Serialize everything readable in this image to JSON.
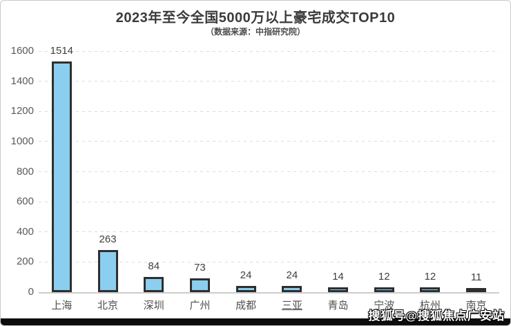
{
  "page": {
    "watermark": "搜狐号@搜狐焦点广安站"
  },
  "chart_data": {
    "type": "bar",
    "title": "2023年至今全国5000万以上豪宅成交TOP10",
    "subtitle": "（数据来源：中指研究院）",
    "categories": [
      "上海",
      "北京",
      "深圳",
      "广州",
      "成都",
      "三亚",
      "青岛",
      "宁波",
      "杭州",
      "南京"
    ],
    "values": [
      1514,
      263,
      84,
      73,
      24,
      24,
      14,
      12,
      12,
      11
    ],
    "underlined_category": "三亚",
    "xlabel": "",
    "ylabel": "",
    "ylim": [
      0,
      1600
    ],
    "yticks": [
      0,
      200,
      400,
      600,
      800,
      1000,
      1200,
      1400,
      1600
    ],
    "grid": "horizontal-dashed",
    "legend": "none",
    "bar_fill": "#8ccef0",
    "bar_border": "#2e2e2e"
  }
}
